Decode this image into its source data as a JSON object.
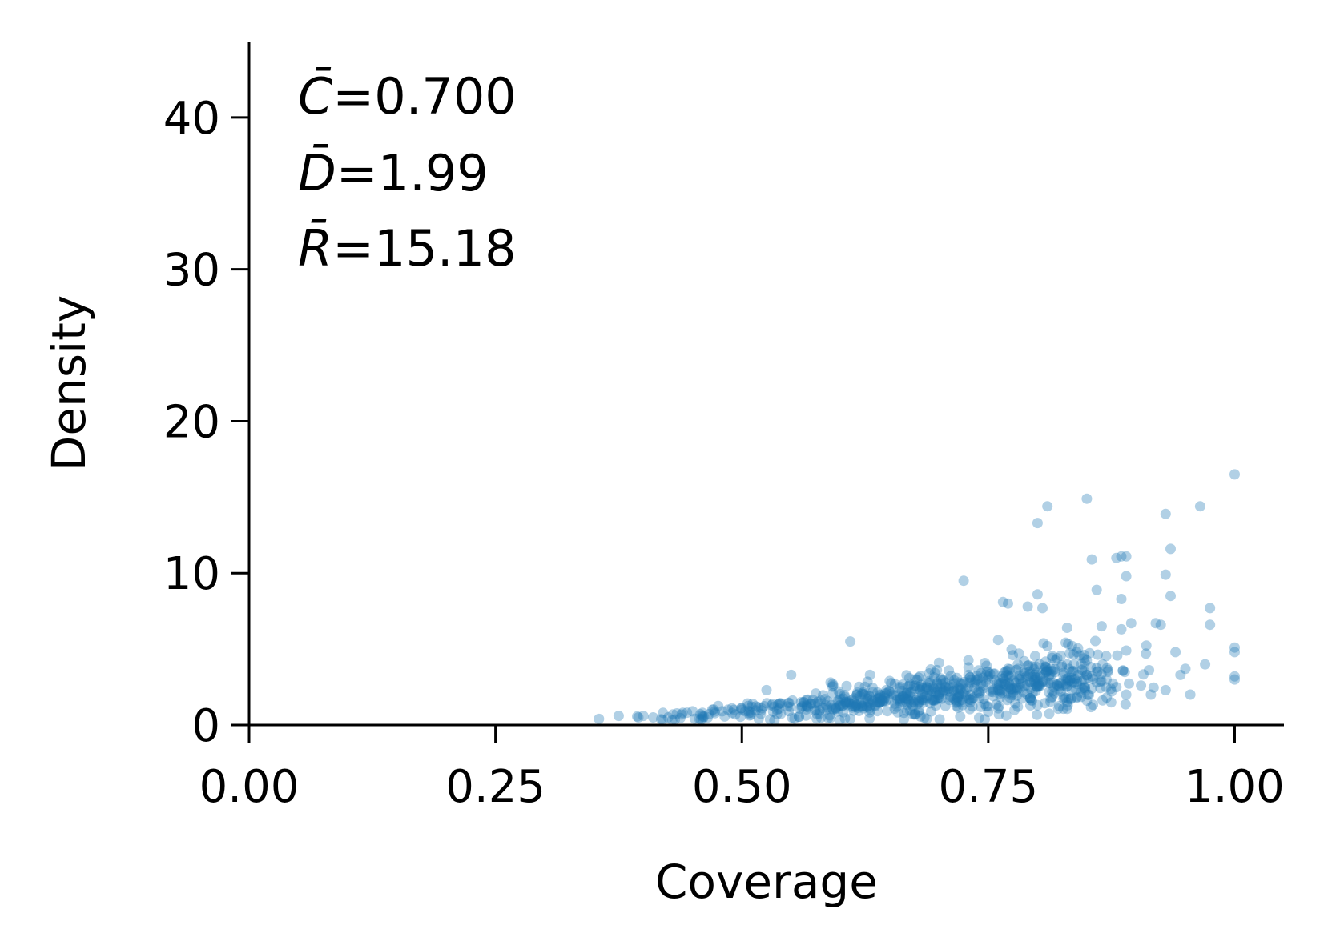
{
  "chart_data": {
    "type": "scatter",
    "xlabel": "Coverage",
    "ylabel": "Density",
    "xlim": [
      0.0,
      1.05
    ],
    "ylim": [
      0,
      45
    ],
    "x_ticks": [
      0.0,
      0.25,
      0.5,
      0.75,
      1.0
    ],
    "x_tick_labels": [
      "0.00",
      "0.25",
      "0.50",
      "0.75",
      "1.00"
    ],
    "y_ticks": [
      0,
      10,
      20,
      30,
      40
    ],
    "y_tick_labels": [
      "0",
      "10",
      "20",
      "30",
      "40"
    ],
    "grid": false,
    "marker_color": "#1f77b4",
    "marker_alpha": 0.35,
    "annotations": [
      {
        "symbol": "C̄",
        "value": "=0.700"
      },
      {
        "symbol": "D̄",
        "value": "=1.99"
      },
      {
        "symbol": "R̄",
        "value": "=15.18"
      }
    ],
    "points": [
      [
        0.355,
        0.4
      ],
      [
        0.375,
        0.6
      ],
      [
        0.395,
        0.5
      ],
      [
        0.4,
        0.6
      ],
      [
        0.41,
        0.5
      ],
      [
        0.42,
        0.8
      ],
      [
        0.43,
        0.7
      ],
      [
        0.44,
        0.8
      ],
      [
        0.45,
        0.9
      ],
      [
        0.46,
        0.8
      ],
      [
        0.47,
        1.0
      ],
      [
        0.48,
        0.9
      ],
      [
        0.49,
        1.1
      ],
      [
        0.5,
        1.0
      ],
      [
        0.51,
        1.2
      ],
      [
        0.52,
        1.1
      ],
      [
        0.53,
        1.3
      ],
      [
        0.54,
        1.4
      ],
      [
        0.525,
        2.3
      ],
      [
        0.55,
        3.3
      ],
      [
        0.56,
        1.5
      ],
      [
        0.57,
        1.4
      ],
      [
        0.58,
        1.6
      ],
      [
        0.59,
        2.8
      ],
      [
        0.6,
        1.7
      ],
      [
        0.61,
        5.5
      ],
      [
        0.62,
        1.9
      ],
      [
        0.63,
        3.3
      ],
      [
        0.64,
        2.0
      ],
      [
        0.65,
        2.2
      ],
      [
        0.66,
        2.4
      ],
      [
        0.67,
        2.6
      ],
      [
        0.68,
        2.5
      ],
      [
        0.69,
        2.9
      ],
      [
        0.7,
        4.1
      ],
      [
        0.71,
        3.0
      ],
      [
        0.72,
        2.8
      ],
      [
        0.725,
        9.5
      ],
      [
        0.73,
        3.3
      ],
      [
        0.74,
        3.6
      ],
      [
        0.75,
        3.2
      ],
      [
        0.76,
        5.6
      ],
      [
        0.765,
        8.1
      ],
      [
        0.77,
        8.0
      ],
      [
        0.775,
        4.6
      ],
      [
        0.78,
        4.0
      ],
      [
        0.79,
        7.8
      ],
      [
        0.8,
        13.3
      ],
      [
        0.8,
        8.6
      ],
      [
        0.805,
        7.7
      ],
      [
        0.81,
        14.4
      ],
      [
        0.81,
        5.2
      ],
      [
        0.82,
        4.4
      ],
      [
        0.83,
        6.4
      ],
      [
        0.835,
        5.2
      ],
      [
        0.85,
        14.9
      ],
      [
        0.855,
        10.9
      ],
      [
        0.86,
        8.9
      ],
      [
        0.865,
        6.5
      ],
      [
        0.88,
        11.0
      ],
      [
        0.885,
        11.1
      ],
      [
        0.89,
        11.1
      ],
      [
        0.89,
        9.8
      ],
      [
        0.885,
        8.3
      ],
      [
        0.885,
        6.3
      ],
      [
        0.89,
        4.9
      ],
      [
        0.895,
        6.7
      ],
      [
        0.91,
        4.7
      ],
      [
        0.92,
        6.7
      ],
      [
        0.925,
        6.6
      ],
      [
        0.93,
        13.9
      ],
      [
        0.935,
        11.6
      ],
      [
        0.93,
        9.9
      ],
      [
        0.935,
        8.5
      ],
      [
        0.94,
        4.8
      ],
      [
        0.95,
        3.7
      ],
      [
        0.965,
        14.4
      ],
      [
        0.97,
        4.0
      ],
      [
        0.975,
        7.7
      ],
      [
        0.975,
        6.6
      ],
      [
        1.0,
        16.5
      ],
      [
        1.0,
        5.1
      ],
      [
        1.0,
        4.8
      ],
      [
        1.0,
        3.2
      ],
      [
        1.0,
        3.0
      ],
      [
        0.955,
        2.0
      ],
      [
        0.945,
        3.3
      ],
      [
        0.93,
        2.3
      ],
      [
        0.915,
        2.0
      ],
      [
        0.905,
        2.6
      ],
      [
        0.6,
        1.3
      ],
      [
        0.62,
        1.4
      ],
      [
        0.64,
        1.5
      ],
      [
        0.66,
        1.6
      ],
      [
        0.68,
        1.8
      ],
      [
        0.7,
        2.0
      ],
      [
        0.72,
        2.1
      ],
      [
        0.74,
        2.2
      ],
      [
        0.76,
        2.3
      ],
      [
        0.78,
        2.4
      ],
      [
        0.8,
        2.5
      ],
      [
        0.82,
        2.6
      ],
      [
        0.84,
        2.7
      ],
      [
        0.86,
        2.8
      ],
      [
        0.88,
        2.5
      ],
      [
        0.575,
        1.0
      ],
      [
        0.595,
        1.1
      ],
      [
        0.615,
        1.2
      ],
      [
        0.635,
        1.3
      ],
      [
        0.655,
        1.4
      ],
      [
        0.675,
        1.5
      ],
      [
        0.695,
        1.6
      ],
      [
        0.715,
        1.7
      ],
      [
        0.735,
        1.8
      ],
      [
        0.755,
        1.9
      ],
      [
        0.775,
        2.0
      ],
      [
        0.795,
        2.1
      ],
      [
        0.815,
        2.2
      ],
      [
        0.835,
        2.3
      ],
      [
        0.855,
        2.4
      ],
      [
        0.875,
        2.2
      ],
      [
        0.69,
        3.4
      ],
      [
        0.71,
        3.6
      ],
      [
        0.73,
        3.8
      ],
      [
        0.75,
        3.5
      ],
      [
        0.77,
        3.7
      ],
      [
        0.79,
        3.9
      ],
      [
        0.81,
        3.6
      ],
      [
        0.83,
        4.0
      ],
      [
        0.85,
        3.3
      ],
      [
        0.87,
        3.0
      ],
      [
        0.65,
        2.9
      ],
      [
        0.67,
        3.1
      ],
      [
        0.83,
        1.5
      ],
      [
        0.85,
        1.6
      ],
      [
        0.87,
        1.8
      ],
      [
        0.89,
        2.0
      ],
      [
        0.8,
        1.3
      ],
      [
        0.78,
        1.2
      ],
      [
        0.76,
        1.1
      ]
    ],
    "cloud_clusters": [
      {
        "x": 0.62,
        "y": 1.5,
        "sx": 0.05,
        "sy": 0.5,
        "n": 170
      },
      {
        "x": 0.72,
        "y": 2.2,
        "sx": 0.05,
        "sy": 0.75,
        "n": 260
      },
      {
        "x": 0.82,
        "y": 2.8,
        "sx": 0.035,
        "sy": 1.0,
        "n": 190
      },
      {
        "x": 0.5,
        "y": 1.0,
        "sx": 0.05,
        "sy": 0.25,
        "n": 60
      }
    ]
  }
}
